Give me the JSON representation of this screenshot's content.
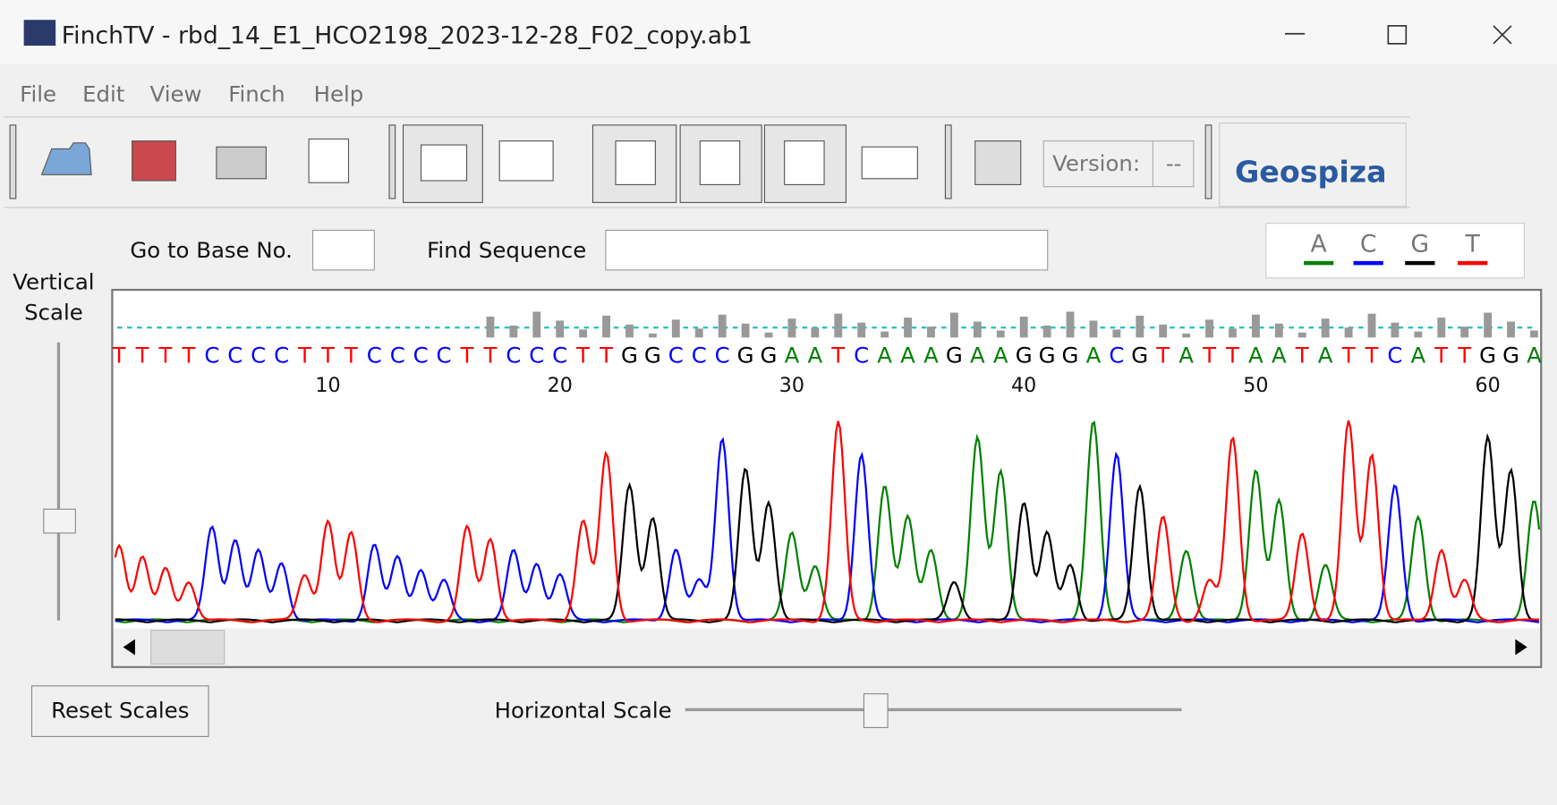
{
  "window": {
    "title": "FinchTV - rbd_14_E1_HCO2198_2023-12-28_F02_copy.ab1"
  },
  "menu": [
    "File",
    "Edit",
    "View",
    "Finch",
    "Help"
  ],
  "toolbar": {
    "version_label": "Version:",
    "version_value": "--",
    "brand": "Geospiza"
  },
  "search": {
    "goto_label": "Go to Base No.",
    "find_label": "Find Sequence"
  },
  "legend": {
    "bases": [
      "A",
      "C",
      "G",
      "T"
    ],
    "colors": [
      "#008000",
      "#0000ff",
      "#000000",
      "#ff0000"
    ]
  },
  "vertical_scale": {
    "label_line1": "Vertical",
    "label_line2": "Scale"
  },
  "sequence": {
    "bases": [
      "T",
      "T",
      "T",
      "T",
      "C",
      "C",
      "C",
      "C",
      "T",
      "T",
      "T",
      "C",
      "C",
      "C",
      "C",
      "T",
      "T",
      "C",
      "C",
      "C",
      "T",
      "T",
      "G",
      "G",
      "C",
      "C",
      "C",
      "G",
      "G",
      "A",
      "A",
      "T",
      "C",
      "A",
      "A",
      "A",
      "G",
      "A",
      "A",
      "G",
      "G",
      "G",
      "A",
      "C",
      "G",
      "T",
      "A",
      "T",
      "T",
      "A",
      "A",
      "T",
      "A",
      "T",
      "T",
      "C",
      "A",
      "T",
      "T",
      "G",
      "G",
      "A"
    ],
    "position_labels": [
      10,
      20,
      30,
      40,
      50,
      60
    ]
  },
  "buttons": {
    "reset": "Reset Scales"
  },
  "horizontal_scale": {
    "label": "Horizontal Scale"
  }
}
